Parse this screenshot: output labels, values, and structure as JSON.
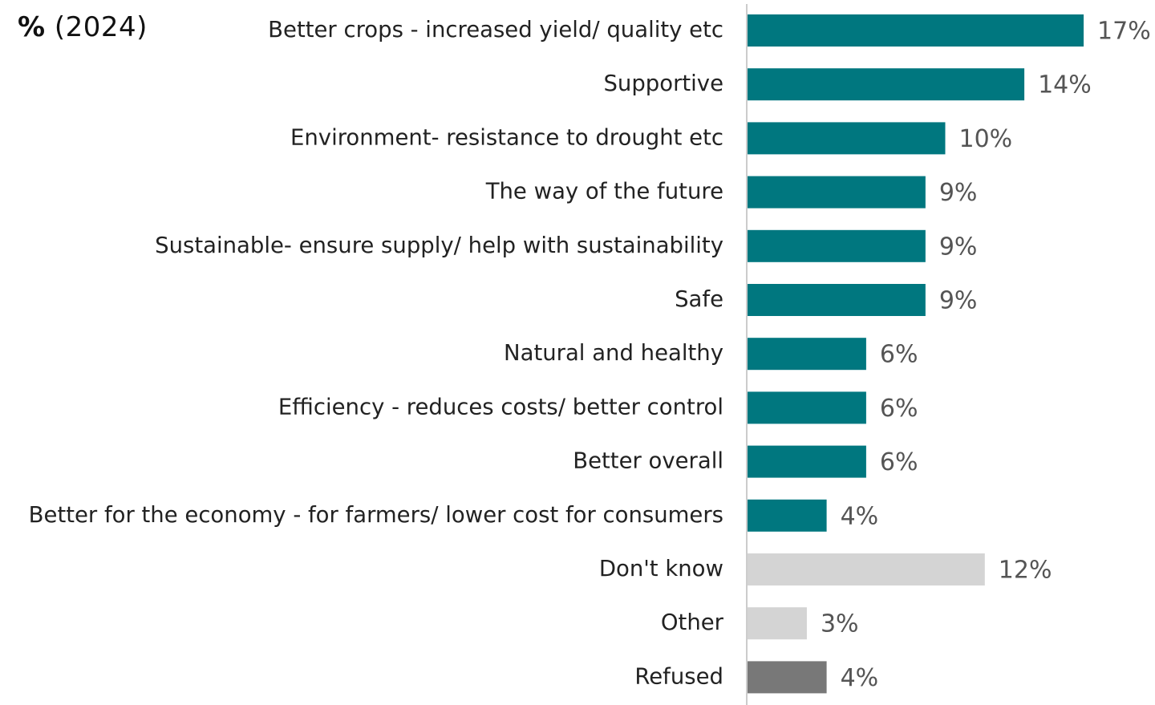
{
  "header": {
    "unit_symbol": "%",
    "year_label": "(2024)"
  },
  "colors": {
    "main": "#00777f",
    "dont_know": "#d4d4d4",
    "other": "#d4d4d4",
    "refused": "#787878",
    "axis": "#cccccc"
  },
  "chart_data": {
    "type": "bar",
    "orientation": "horizontal",
    "xlim": [
      0,
      17
    ],
    "grid": false,
    "categories": [
      "Better crops - increased yield/ quality etc",
      "Supportive",
      "Environment- resistance to drought etc",
      "The way of the future",
      "Sustainable- ensure supply/ help with sustainability",
      "Safe",
      "Natural and healthy",
      "Efficiency - reduces costs/ better control",
      "Better overall",
      "Better for the economy - for farmers/ lower cost for consumers",
      "Don't know",
      "Other",
      "Refused"
    ],
    "values": [
      17,
      14,
      10,
      9,
      9,
      9,
      6,
      6,
      6,
      4,
      12,
      3,
      4
    ],
    "value_labels": [
      "17%",
      "14%",
      "10%",
      "9%",
      "9%",
      "9%",
      "6%",
      "6%",
      "6%",
      "4%",
      "12%",
      "3%",
      "4%"
    ],
    "bar_color_keys": [
      "main",
      "main",
      "main",
      "main",
      "main",
      "main",
      "main",
      "main",
      "main",
      "main",
      "dont_know",
      "other",
      "refused"
    ]
  }
}
